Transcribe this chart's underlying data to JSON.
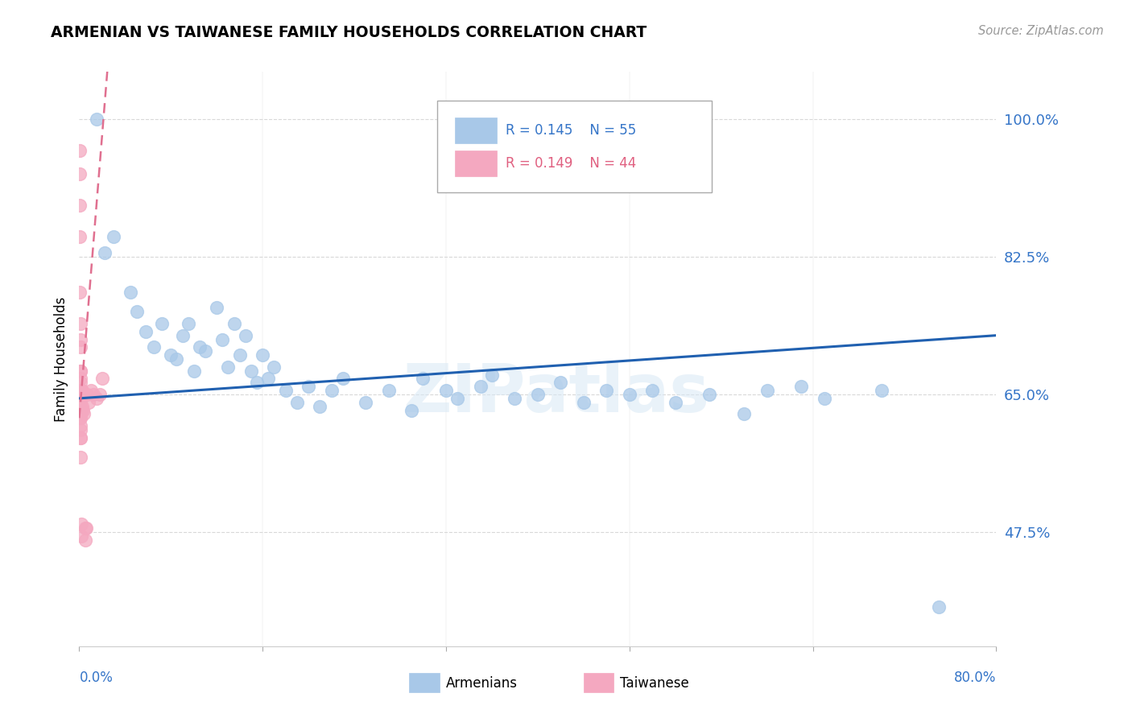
{
  "title": "ARMENIAN VS TAIWANESE FAMILY HOUSEHOLDS CORRELATION CHART",
  "source": "Source: ZipAtlas.com",
  "ylabel": "Family Households",
  "y_ticks": [
    47.5,
    65.0,
    82.5,
    100.0
  ],
  "y_tick_labels": [
    "47.5%",
    "65.0%",
    "82.5%",
    "100.0%"
  ],
  "x_range": [
    0.0,
    80.0
  ],
  "y_range": [
    33.0,
    106.0
  ],
  "armenian_R": 0.145,
  "armenian_N": 55,
  "taiwanese_R": 0.149,
  "taiwanese_N": 44,
  "armenian_color": "#a8c8e8",
  "taiwanese_color": "#f4a8c0",
  "armenian_line_color": "#2060b0",
  "taiwanese_line_color": "#e07090",
  "watermark": "ZIPatlas",
  "legend_box_color": "#f0f4ff",
  "armenian_x": [
    1.5,
    2.2,
    3.0,
    4.5,
    5.0,
    5.8,
    6.5,
    7.2,
    8.0,
    8.5,
    9.0,
    9.5,
    10.0,
    10.5,
    11.0,
    12.0,
    12.5,
    13.0,
    13.5,
    14.0,
    14.5,
    15.0,
    15.5,
    16.0,
    16.5,
    17.0,
    18.0,
    19.0,
    20.0,
    21.0,
    22.0,
    23.0,
    25.0,
    27.0,
    29.0,
    30.0,
    32.0,
    33.0,
    35.0,
    36.0,
    38.0,
    40.0,
    42.0,
    44.0,
    46.0,
    48.0,
    50.0,
    52.0,
    55.0,
    58.0,
    60.0,
    63.0,
    65.0,
    70.0,
    75.0
  ],
  "armenian_y": [
    100.0,
    83.0,
    85.0,
    78.0,
    75.5,
    73.0,
    71.0,
    74.0,
    70.0,
    69.5,
    72.5,
    74.0,
    68.0,
    71.0,
    70.5,
    76.0,
    72.0,
    68.5,
    74.0,
    70.0,
    72.5,
    68.0,
    66.5,
    70.0,
    67.0,
    68.5,
    65.5,
    64.0,
    66.0,
    63.5,
    65.5,
    67.0,
    64.0,
    65.5,
    63.0,
    67.0,
    65.5,
    64.5,
    66.0,
    67.5,
    64.5,
    65.0,
    66.5,
    64.0,
    65.5,
    65.0,
    65.5,
    64.0,
    65.0,
    62.5,
    65.5,
    66.0,
    64.5,
    65.5,
    38.0
  ],
  "taiwanese_x": [
    0.05,
    0.05,
    0.05,
    0.05,
    0.05,
    0.08,
    0.08,
    0.08,
    0.08,
    0.08,
    0.08,
    0.08,
    0.1,
    0.1,
    0.1,
    0.1,
    0.1,
    0.1,
    0.1,
    0.1,
    0.12,
    0.12,
    0.12,
    0.12,
    0.15,
    0.15,
    0.18,
    0.2,
    0.2,
    0.25,
    0.25,
    0.3,
    0.35,
    0.4,
    0.5,
    0.5,
    0.6,
    0.7,
    0.8,
    1.0,
    1.2,
    1.5,
    1.8,
    2.0
  ],
  "taiwanese_y": [
    96.0,
    93.0,
    89.0,
    85.0,
    78.0,
    74.0,
    71.0,
    68.0,
    65.5,
    63.0,
    62.0,
    60.5,
    72.0,
    68.0,
    66.5,
    64.0,
    62.5,
    61.0,
    59.5,
    57.0,
    67.0,
    64.0,
    62.0,
    59.5,
    65.5,
    63.0,
    65.0,
    48.5,
    47.0,
    65.5,
    63.5,
    63.0,
    65.0,
    62.5,
    48.0,
    46.5,
    48.0,
    65.0,
    64.0,
    65.5,
    65.0,
    64.5,
    65.0,
    67.0
  ]
}
